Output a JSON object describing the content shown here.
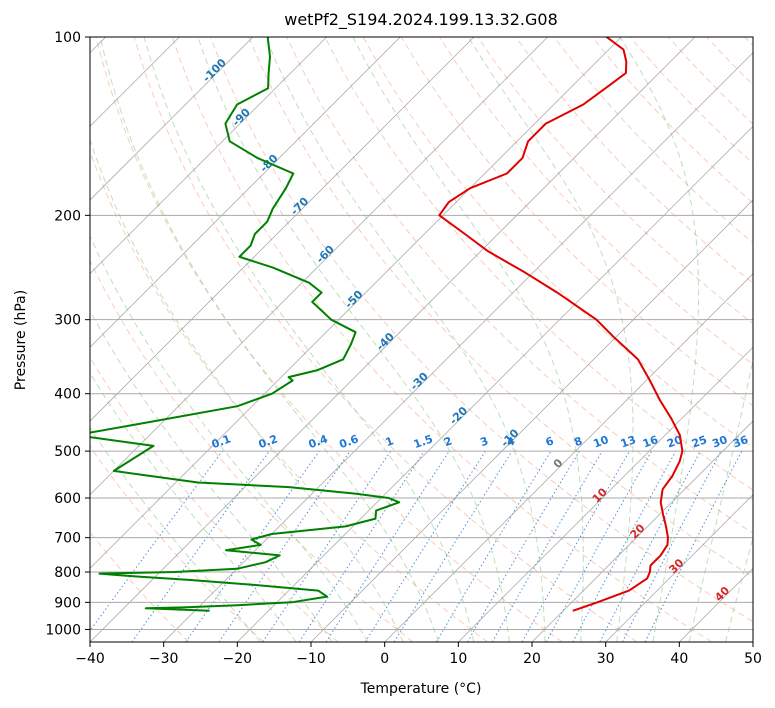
{
  "chart_data": {
    "type": "line",
    "title": "wetPf2_S194.2024.199.13.32.G08",
    "xlabel": "Temperature (°C)",
    "ylabel": "Pressure (hPa)",
    "xlim": [
      -40,
      50
    ],
    "ylim": [
      1050,
      100
    ],
    "y_scale": "log",
    "x_ticks": [
      -40,
      -30,
      -20,
      -10,
      0,
      10,
      20,
      30,
      40,
      50
    ],
    "x_tick_labels": [
      "−40",
      "−30",
      "−20",
      "−10",
      "0",
      "10",
      "20",
      "30",
      "40",
      "50"
    ],
    "y_ticks": [
      100,
      200,
      300,
      400,
      500,
      600,
      700,
      800,
      900,
      1000
    ],
    "y_tick_labels": [
      "100",
      "200",
      "300",
      "400",
      "500",
      "600",
      "700",
      "800",
      "900",
      "1000"
    ],
    "grid": true,
    "skew": "skew-T",
    "isotherm_labels": [
      "-100",
      "-90",
      "-80",
      "-70",
      "-60",
      "-50",
      "-40",
      "-30",
      "-20",
      "-10",
      "0",
      "10",
      "20",
      "30",
      "40"
    ],
    "mixing_ratio_labels": [
      "0.1",
      "0.2",
      "0.4",
      "0.6",
      "1",
      "1.5",
      "2",
      "3",
      "4",
      "6",
      "8",
      "10",
      "13",
      "16",
      "20",
      "25",
      "30",
      "36"
    ],
    "series": [
      {
        "color": "#e00000",
        "label_role": "temperature",
        "p": [
          930,
          900,
          860,
          820,
          800,
          780,
          750,
          720,
          700,
          670,
          640,
          610,
          580,
          550,
          520,
          500,
          470,
          440,
          410,
          380,
          350,
          320,
          300,
          270,
          250,
          230,
          215,
          200,
          190,
          180,
          170,
          160,
          150,
          140,
          130,
          120,
          115,
          110,
          105,
          100
        ],
        "t": [
          21.3,
          23.5,
          26.2,
          27.0,
          26.5,
          25.7,
          25.7,
          25.2,
          24.3,
          22.5,
          20.5,
          18.5,
          17.0,
          16.5,
          15.5,
          14.5,
          12.0,
          8.5,
          4.5,
          0.5,
          -4.0,
          -10.5,
          -15.0,
          -24.0,
          -31.0,
          -39.0,
          -44.5,
          -50.5,
          -51.0,
          -50.0,
          -47.0,
          -47.0,
          -48.5,
          -48.5,
          -46.0,
          -45.0,
          -44.5,
          -46.0,
          -48.0,
          -52.0
        ]
      },
      {
        "color": "#008000",
        "label_role": "dewpoint",
        "p": [
          930,
          925,
          921,
          918,
          910,
          900,
          880,
          860,
          840,
          825,
          815,
          805,
          800,
          790,
          770,
          750,
          735,
          720,
          705,
          690,
          670,
          650,
          630,
          610,
          600,
          590,
          575,
          565,
          540,
          490,
          470,
          450,
          420,
          400,
          380,
          375,
          365,
          350,
          330,
          315,
          300,
          280,
          270,
          260,
          245,
          235,
          225,
          215,
          205,
          195,
          180,
          170,
          160,
          150,
          140,
          130,
          122,
          115,
          108,
          100
        ],
        "t": [
          -28,
          -33,
          -37,
          -32,
          -25,
          -18,
          -14,
          -16,
          -26,
          -35,
          -42,
          -48,
          -38,
          -30,
          -27,
          -26,
          -34,
          -30,
          -32,
          -30,
          -21,
          -18,
          -19,
          -17,
          -19,
          -24,
          -34,
          -47,
          -60,
          -58,
          -70,
          -63,
          -52,
          -49,
          -48,
          -49,
          -46,
          -44,
          -45,
          -46,
          -51,
          -56,
          -56,
          -59,
          -66,
          -72,
          -72,
          -73,
          -73,
          -74,
          -75,
          -76,
          -83,
          -89,
          -92,
          -93,
          -91,
          -93,
          -95,
          -98
        ]
      }
    ]
  }
}
